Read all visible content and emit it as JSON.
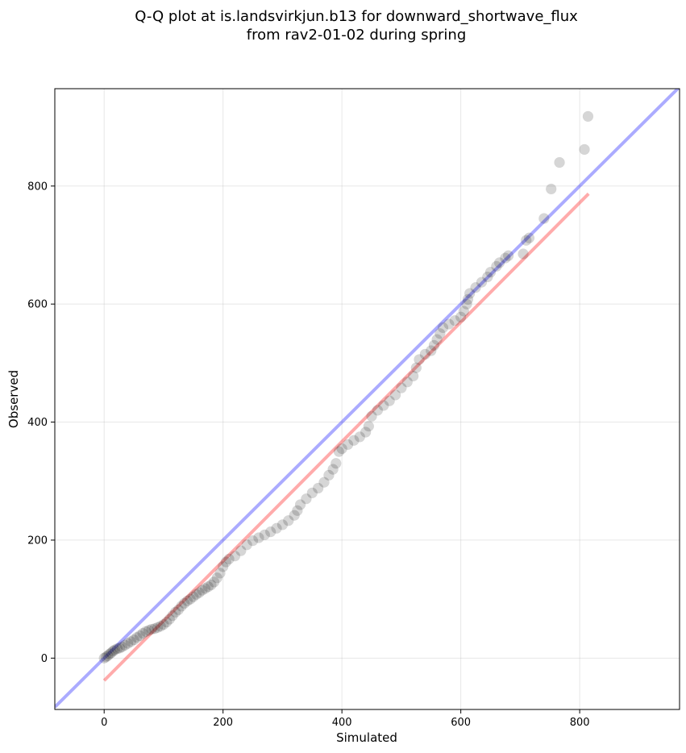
{
  "chart_data": {
    "type": "scatter",
    "title_line1": "Q-Q plot at is.landsvirkjun.b13 for downward_shortwave_flux",
    "title_line2": "from rav2-01-02 during spring",
    "xlabel": "Simulated",
    "ylabel": "Observed",
    "xlim": [
      -83,
      968
    ],
    "ylim": [
      -87,
      965
    ],
    "xticks": [
      0,
      200,
      400,
      600,
      800
    ],
    "yticks": [
      0,
      200,
      400,
      600,
      800
    ],
    "grid": true,
    "identity_line": {
      "color": "#0000ff",
      "from": [
        -83,
        -83
      ],
      "to": [
        968,
        968
      ]
    },
    "fit_line": {
      "color": "#ff0000",
      "from": [
        0,
        -38
      ],
      "to": [
        815,
        787
      ]
    },
    "points": [
      [
        0,
        0
      ],
      [
        3,
        2
      ],
      [
        6,
        4
      ],
      [
        9,
        7
      ],
      [
        12,
        9
      ],
      [
        15,
        12
      ],
      [
        18,
        14
      ],
      [
        22,
        16
      ],
      [
        26,
        17
      ],
      [
        30,
        19
      ],
      [
        35,
        22
      ],
      [
        40,
        25
      ],
      [
        45,
        28
      ],
      [
        50,
        31
      ],
      [
        55,
        35
      ],
      [
        60,
        38
      ],
      [
        65,
        42
      ],
      [
        70,
        45
      ],
      [
        75,
        47
      ],
      [
        80,
        49
      ],
      [
        85,
        50
      ],
      [
        90,
        52
      ],
      [
        95,
        54
      ],
      [
        100,
        57
      ],
      [
        105,
        61
      ],
      [
        110,
        66
      ],
      [
        115,
        72
      ],
      [
        120,
        78
      ],
      [
        125,
        82
      ],
      [
        130,
        88
      ],
      [
        135,
        93
      ],
      [
        140,
        97
      ],
      [
        145,
        100
      ],
      [
        150,
        104
      ],
      [
        155,
        108
      ],
      [
        160,
        111
      ],
      [
        165,
        115
      ],
      [
        170,
        118
      ],
      [
        175,
        121
      ],
      [
        180,
        124
      ],
      [
        185,
        129
      ],
      [
        190,
        136
      ],
      [
        195,
        144
      ],
      [
        200,
        155
      ],
      [
        205,
        163
      ],
      [
        210,
        168
      ],
      [
        220,
        173
      ],
      [
        230,
        182
      ],
      [
        240,
        192
      ],
      [
        250,
        199
      ],
      [
        260,
        204
      ],
      [
        270,
        209
      ],
      [
        280,
        214
      ],
      [
        290,
        220
      ],
      [
        300,
        226
      ],
      [
        310,
        233
      ],
      [
        320,
        242
      ],
      [
        325,
        250
      ],
      [
        330,
        260
      ],
      [
        340,
        270
      ],
      [
        350,
        280
      ],
      [
        360,
        288
      ],
      [
        370,
        298
      ],
      [
        378,
        310
      ],
      [
        385,
        320
      ],
      [
        390,
        330
      ],
      [
        395,
        350
      ],
      [
        400,
        355
      ],
      [
        410,
        362
      ],
      [
        420,
        369
      ],
      [
        430,
        375
      ],
      [
        440,
        383
      ],
      [
        445,
        393
      ],
      [
        450,
        410
      ],
      [
        460,
        420
      ],
      [
        470,
        428
      ],
      [
        480,
        436
      ],
      [
        490,
        446
      ],
      [
        500,
        458
      ],
      [
        510,
        468
      ],
      [
        520,
        478
      ],
      [
        525,
        492
      ],
      [
        530,
        506
      ],
      [
        540,
        515
      ],
      [
        550,
        521
      ],
      [
        555,
        530
      ],
      [
        560,
        540
      ],
      [
        565,
        550
      ],
      [
        570,
        560
      ],
      [
        580,
        566
      ],
      [
        590,
        572
      ],
      [
        600,
        578
      ],
      [
        605,
        588
      ],
      [
        610,
        600
      ],
      [
        612,
        608
      ],
      [
        615,
        618
      ],
      [
        625,
        628
      ],
      [
        635,
        637
      ],
      [
        645,
        646
      ],
      [
        650,
        654
      ],
      [
        660,
        664
      ],
      [
        665,
        670
      ],
      [
        675,
        678
      ],
      [
        680,
        682
      ],
      [
        705,
        685
      ],
      [
        710,
        708
      ],
      [
        715,
        712
      ],
      [
        740,
        745
      ],
      [
        752,
        795
      ],
      [
        766,
        840
      ],
      [
        808,
        862
      ],
      [
        814,
        918
      ]
    ]
  }
}
